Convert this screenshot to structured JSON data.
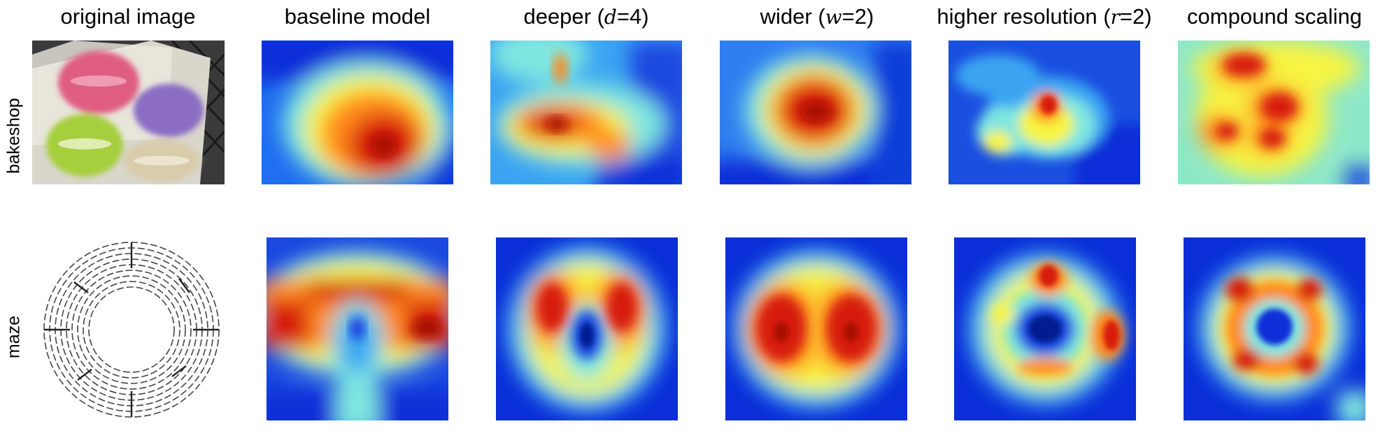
{
  "columns": [
    {
      "prefix": "original image",
      "var": "",
      "suffix": ""
    },
    {
      "prefix": "baseline model",
      "var": "",
      "suffix": ""
    },
    {
      "prefix": "deeper (",
      "var": "d",
      "suffix": "=4)"
    },
    {
      "prefix": "wider (",
      "var": "w",
      "suffix": "=2)"
    },
    {
      "prefix": "higher resolution (",
      "var": "r",
      "suffix": "=2)"
    },
    {
      "prefix": "compound scaling",
      "var": "",
      "suffix": ""
    }
  ],
  "rows": [
    {
      "label": "bakeshop"
    },
    {
      "label": "maze"
    }
  ],
  "colors": {
    "hot": "#d61e0a",
    "warm": "#ff8a1e",
    "yellow": "#f7f443",
    "cyan": "#7fe6e0",
    "sky": "#2f8ff5",
    "blue": "#0a2fd8",
    "navy": "#001b8f"
  }
}
